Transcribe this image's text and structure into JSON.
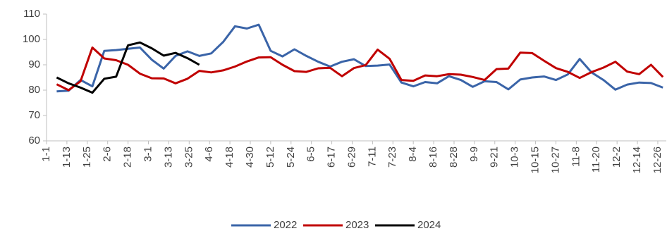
{
  "chart_data": {
    "type": "line",
    "x": [
      6,
      13,
      20,
      27,
      34,
      41,
      48,
      55,
      62,
      69,
      76,
      83,
      90,
      97,
      104,
      111,
      118,
      125,
      132,
      139,
      146,
      153,
      160,
      167,
      174,
      181,
      188,
      195,
      202,
      209,
      216,
      223,
      230,
      237,
      244,
      251,
      258,
      265,
      272,
      279,
      286,
      293,
      300,
      307,
      314,
      321,
      328,
      335,
      342,
      349,
      356,
      363
    ],
    "xlim": [
      0,
      365
    ],
    "xticks": [
      {
        "value": 0,
        "label": "1-1"
      },
      {
        "value": 12,
        "label": "1-13"
      },
      {
        "value": 24,
        "label": "1-25"
      },
      {
        "value": 36,
        "label": "2-6"
      },
      {
        "value": 48,
        "label": "2-18"
      },
      {
        "value": 60,
        "label": "3-1"
      },
      {
        "value": 72,
        "label": "3-13"
      },
      {
        "value": 84,
        "label": "3-25"
      },
      {
        "value": 96,
        "label": "4-6"
      },
      {
        "value": 108,
        "label": "4-18"
      },
      {
        "value": 120,
        "label": "4-30"
      },
      {
        "value": 132,
        "label": "5-12"
      },
      {
        "value": 144,
        "label": "5-24"
      },
      {
        "value": 156,
        "label": "6-5"
      },
      {
        "value": 168,
        "label": "6-17"
      },
      {
        "value": 180,
        "label": "6-29"
      },
      {
        "value": 192,
        "label": "7-11"
      },
      {
        "value": 204,
        "label": "7-23"
      },
      {
        "value": 216,
        "label": "8-4"
      },
      {
        "value": 228,
        "label": "8-16"
      },
      {
        "value": 240,
        "label": "8-28"
      },
      {
        "value": 252,
        "label": "9-9"
      },
      {
        "value": 264,
        "label": "9-21"
      },
      {
        "value": 276,
        "label": "10-3"
      },
      {
        "value": 288,
        "label": "10-15"
      },
      {
        "value": 300,
        "label": "10-27"
      },
      {
        "value": 312,
        "label": "11-8"
      },
      {
        "value": 324,
        "label": "11-20"
      },
      {
        "value": 336,
        "label": "12-2"
      },
      {
        "value": 348,
        "label": "12-14"
      },
      {
        "value": 360,
        "label": "12-26"
      }
    ],
    "ylim": [
      60,
      110
    ],
    "yticks": [
      60,
      70,
      80,
      90,
      100,
      110
    ],
    "legend": "bottom",
    "series": [
      {
        "name": "2022",
        "color": "#3a64a8",
        "values": [
          79.5,
          79.8,
          84,
          81.5,
          95.5,
          95.8,
          96.3,
          96.8,
          92,
          88.5,
          93.5,
          95.3,
          93.5,
          94.5,
          99,
          105.2,
          104.3,
          105.8,
          95.5,
          93.3,
          96.1,
          93.5,
          91.2,
          89.3,
          91.2,
          92.2,
          89.5,
          89.7,
          90.1,
          83,
          81.5,
          83.2,
          82.7,
          85.5,
          84,
          81.3,
          83.5,
          83.2,
          80.3,
          84.2,
          85,
          85.4,
          84,
          86.2,
          92.3,
          87,
          84,
          80.2,
          82.2,
          83,
          82.8,
          81
        ]
      },
      {
        "name": "2023",
        "color": "#c00000",
        "values": [
          82.3,
          80,
          83.5,
          96.8,
          92.5,
          91.8,
          90,
          86.5,
          84.7,
          84.6,
          82.7,
          84.5,
          87.6,
          87,
          87.8,
          89.3,
          91.3,
          92.9,
          93,
          90,
          87.5,
          87.2,
          88.6,
          88.8,
          85.5,
          88.7,
          89.9,
          96,
          92.4,
          84,
          83.7,
          85.8,
          85.5,
          86.3,
          86.1,
          85.2,
          84,
          88.3,
          88.5,
          94.8,
          94.6,
          91.6,
          88.7,
          87.2,
          84.8,
          87.1,
          88.9,
          91.2,
          87.3,
          86.3,
          90,
          85.2
        ]
      },
      {
        "name": "2024",
        "color": "#000000",
        "values": [
          85,
          82.7,
          81,
          79,
          84.5,
          85.3,
          97.7,
          98.8,
          96.5,
          93.6,
          94.7,
          92.6,
          90,
          null,
          null,
          null,
          null,
          null,
          null,
          null,
          null,
          null,
          null,
          null,
          null,
          null,
          null,
          null,
          null,
          null,
          null,
          null,
          null,
          null,
          null,
          null,
          null,
          null,
          null,
          null,
          null,
          null,
          null,
          null,
          null,
          null,
          null,
          null,
          null,
          null,
          null,
          null
        ]
      }
    ]
  }
}
